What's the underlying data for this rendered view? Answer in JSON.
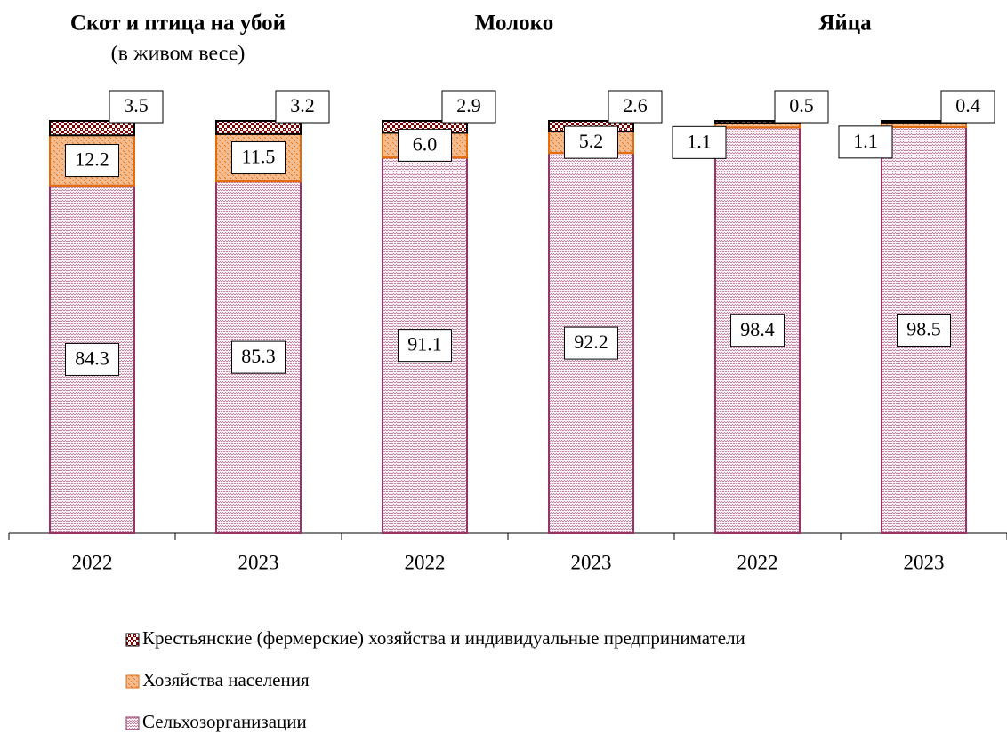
{
  "chart_data": {
    "type": "stacked_bar",
    "groups": [
      {
        "title": "Скот и птица на убой",
        "subtitle": "(в живом весе)"
      },
      {
        "title": "Молоко"
      },
      {
        "title": "Яйца"
      }
    ],
    "categories": [
      "2022",
      "2023",
      "2022",
      "2023",
      "2022",
      "2023"
    ],
    "ylim": [
      0,
      100
    ],
    "series": [
      {
        "name": "Крестьянские (фермерские) хозяйства и индивидуальные предприниматели",
        "color": "#800000",
        "values": [
          3.5,
          3.2,
          2.9,
          2.6,
          0.5,
          0.4
        ],
        "value_labels": [
          "3.5",
          "3.2",
          "2.9",
          "2.6",
          "0.5",
          "0.4"
        ]
      },
      {
        "name": "Хозяйства населения",
        "color": "#e46c0a",
        "values": [
          12.2,
          11.5,
          6.0,
          5.2,
          1.1,
          1.1
        ],
        "value_labels": [
          "12.2",
          "11.5",
          "6.0",
          "5.2",
          "1.1",
          "1.1"
        ]
      },
      {
        "name": "Сельхозорганизации",
        "color": "#993366",
        "values": [
          84.3,
          85.3,
          91.1,
          92.2,
          98.4,
          98.5
        ],
        "value_labels": [
          "84.3",
          "85.3",
          "91.1",
          "92.2",
          "98.4",
          "98.5"
        ]
      }
    ]
  }
}
